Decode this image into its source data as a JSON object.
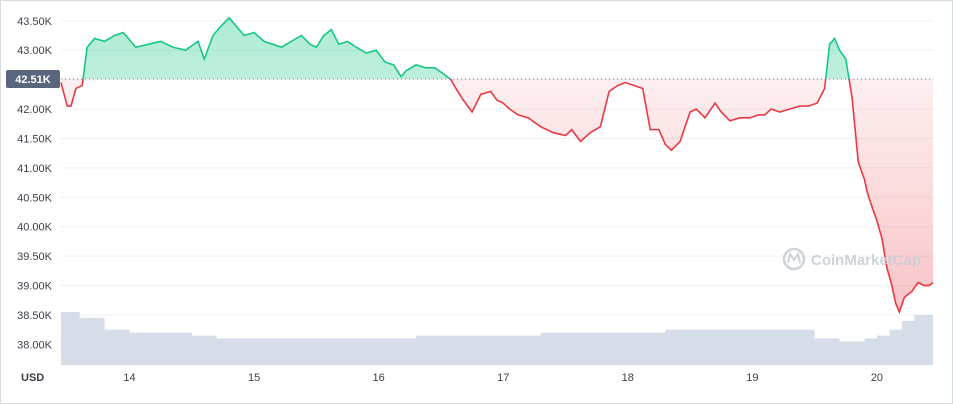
{
  "chart_data": {
    "type": "area",
    "currency_label": "USD",
    "current_price_label": "42.51K",
    "reference_value": 42510,
    "watermark": "CoinMarketCap",
    "y_ticks": [
      "43.50K",
      "43.00K",
      "42.50K",
      "42.00K",
      "41.50K",
      "41.00K",
      "40.50K",
      "40.00K",
      "39.50K",
      "39.00K",
      "38.50K",
      "38.00K"
    ],
    "y_tick_values": [
      43500,
      43000,
      42500,
      42000,
      41500,
      41000,
      40500,
      40000,
      39500,
      39000,
      38500,
      38000
    ],
    "x_ticks": [
      "14",
      "15",
      "16",
      "17",
      "18",
      "19",
      "20"
    ],
    "x_tick_values": [
      14,
      15,
      16,
      17,
      18,
      19,
      20
    ],
    "ylim": [
      37650,
      43700
    ],
    "xlim": [
      13.45,
      20.45
    ],
    "colors": {
      "up": "#16c784",
      "down": "#ea3943",
      "volume": "#cfd6e4",
      "grid": "#eef0f3",
      "badge": "#58667e"
    },
    "series": [
      {
        "x": [
          13.45,
          13.5,
          13.53,
          13.57,
          13.62,
          13.66,
          13.72,
          13.8,
          13.88,
          13.95,
          14.05,
          14.15,
          14.25,
          14.35,
          14.45,
          14.55,
          14.6,
          14.67,
          14.73,
          14.8,
          14.86,
          14.92,
          15.0,
          15.08,
          15.15,
          15.22,
          15.3,
          15.38,
          15.45,
          15.5,
          15.56,
          15.62,
          15.68,
          15.75,
          15.82,
          15.9,
          15.98,
          16.05,
          16.12,
          16.18,
          16.22,
          16.3,
          16.38,
          16.45,
          16.52,
          16.58,
          16.62,
          16.68,
          16.75,
          16.82,
          16.9,
          16.95,
          17.0,
          17.05,
          17.12,
          17.2,
          17.3,
          17.4,
          17.5,
          17.55,
          17.62,
          17.7,
          17.78,
          17.85,
          17.92,
          17.98,
          18.05,
          18.12,
          18.18,
          18.25,
          18.3,
          18.35,
          18.42,
          18.5,
          18.55,
          18.62,
          18.7,
          18.75,
          18.82,
          18.9,
          18.98,
          19.05,
          19.1,
          19.15,
          19.22,
          19.3,
          19.38,
          19.45,
          19.52,
          19.58,
          19.62,
          19.66,
          19.7,
          19.75,
          19.8,
          19.85,
          19.9,
          19.92,
          19.95,
          20.0,
          20.04,
          20.08,
          20.12,
          20.15,
          20.18,
          20.22,
          20.28,
          20.33,
          20.38,
          20.42,
          20.45
        ],
        "y": [
          42450,
          42050,
          42050,
          42350,
          42400,
          43050,
          43200,
          43150,
          43250,
          43300,
          43050,
          43100,
          43150,
          43050,
          43000,
          43150,
          42850,
          43250,
          43400,
          43550,
          43400,
          43250,
          43300,
          43150,
          43100,
          43050,
          43150,
          43250,
          43100,
          43050,
          43250,
          43350,
          43100,
          43150,
          43050,
          42950,
          43000,
          42800,
          42750,
          42550,
          42650,
          42750,
          42700,
          42700,
          42600,
          42500,
          42350,
          42150,
          41950,
          42250,
          42300,
          42150,
          42100,
          42000,
          41900,
          41850,
          41700,
          41600,
          41550,
          41650,
          41450,
          41600,
          41700,
          42300,
          42400,
          42450,
          42400,
          42350,
          41650,
          41650,
          41400,
          41300,
          41450,
          41950,
          42000,
          41850,
          42100,
          41950,
          41800,
          41850,
          41850,
          41900,
          41900,
          42000,
          41950,
          42000,
          42050,
          42050,
          42100,
          42350,
          43100,
          43200,
          43000,
          42850,
          42200,
          41100,
          40800,
          40600,
          40400,
          40100,
          39800,
          39300,
          39000,
          38700,
          38550,
          38800,
          38900,
          39050,
          39000,
          39000,
          39050
        ]
      }
    ],
    "volume": {
      "x": [
        13.45,
        13.6,
        13.8,
        14.0,
        14.3,
        14.5,
        14.7,
        15.0,
        15.3,
        15.6,
        15.9,
        16.1,
        16.3,
        16.5,
        16.7,
        17.0,
        17.3,
        17.6,
        17.8,
        18.0,
        18.3,
        18.6,
        18.9,
        19.2,
        19.5,
        19.7,
        19.9,
        20.0,
        20.1,
        20.2,
        20.3,
        20.45
      ],
      "y": [
        38550,
        38450,
        38250,
        38200,
        38200,
        38150,
        38100,
        38100,
        38100,
        38100,
        38100,
        38100,
        38150,
        38150,
        38150,
        38150,
        38200,
        38200,
        38200,
        38200,
        38250,
        38250,
        38250,
        38250,
        38100,
        38050,
        38100,
        38150,
        38250,
        38400,
        38500,
        38550
      ]
    }
  }
}
